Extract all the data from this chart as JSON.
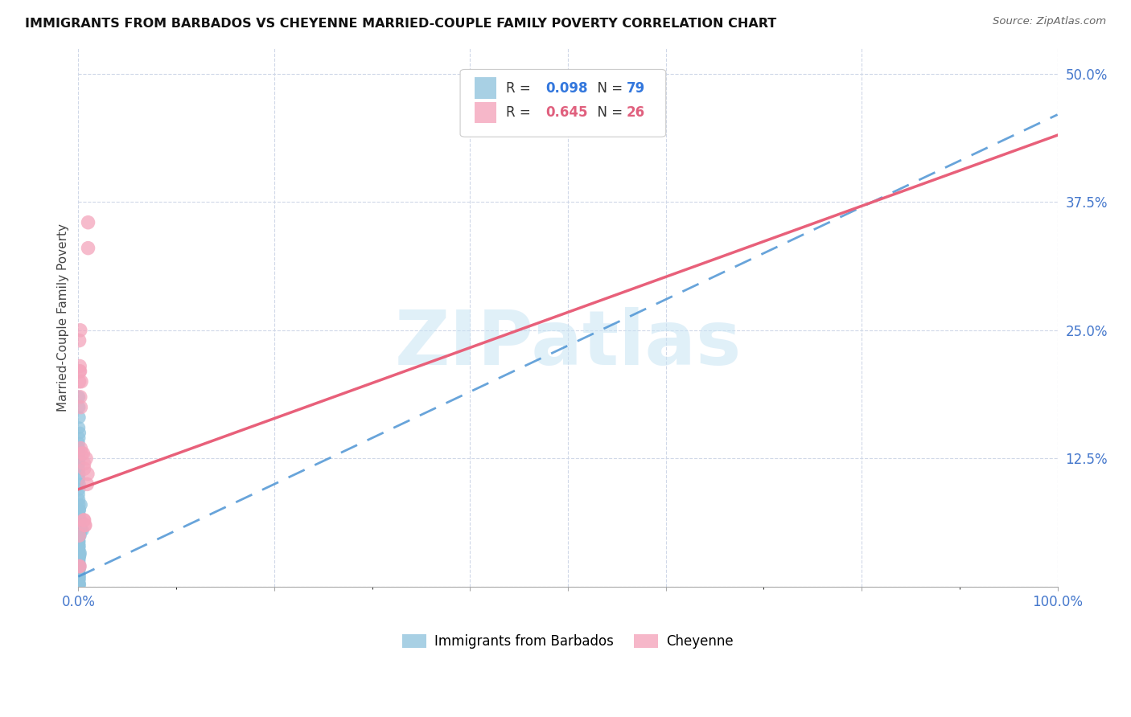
{
  "title": "IMMIGRANTS FROM BARBADOS VS CHEYENNE MARRIED-COUPLE FAMILY POVERTY CORRELATION CHART",
  "source": "Source: ZipAtlas.com",
  "ylabel": "Married-Couple Family Poverty",
  "series1_label": "Immigrants from Barbados",
  "series2_label": "Cheyenne",
  "series1_R": 0.098,
  "series1_N": 79,
  "series2_R": 0.645,
  "series2_N": 26,
  "series1_color": "#92c5de",
  "series2_color": "#f4a5bc",
  "trendline1_color": "#4d94d4",
  "trendline2_color": "#e8607a",
  "trendline1_style": "dashed",
  "trendline2_style": "solid",
  "watermark": "ZIPatlas",
  "watermark_color": "#c8e4f4",
  "xlim": [
    0.0,
    1.0
  ],
  "ylim": [
    0.0,
    0.525
  ],
  "x_tick_positions": [
    0.0,
    0.2,
    0.4,
    0.5,
    0.6,
    0.8,
    1.0
  ],
  "x_tick_labels_show": {
    "0.0": "0.0%",
    "1.0": "100.0%"
  },
  "y_ticks": [
    0.0,
    0.125,
    0.25,
    0.375,
    0.5
  ],
  "y_tick_labels": [
    "",
    "12.5%",
    "25.0%",
    "37.5%",
    "50.0%"
  ],
  "trendline1_x0": 0.0,
  "trendline1_y0": 0.01,
  "trendline1_x1": 1.0,
  "trendline1_y1": 0.46,
  "trendline2_x0": 0.0,
  "trendline2_y0": 0.095,
  "trendline2_x1": 1.0,
  "trendline2_y1": 0.44,
  "series1_x": [
    0.0008,
    0.001,
    0.0012,
    0.0008,
    0.0015,
    0.001,
    0.0005,
    0.0008,
    0.001,
    0.0012,
    0.0008,
    0.0005,
    0.001,
    0.0008,
    0.0012,
    0.001,
    0.0005,
    0.0008,
    0.001,
    0.0015,
    0.0008,
    0.001,
    0.0005,
    0.0008,
    0.001,
    0.0012,
    0.0008,
    0.0005,
    0.001,
    0.0008,
    0.0012,
    0.001,
    0.0005,
    0.0008,
    0.001,
    0.0015,
    0.0008,
    0.001,
    0.0005,
    0.0008,
    0.001,
    0.0012,
    0.0008,
    0.0005,
    0.001,
    0.0008,
    0.0012,
    0.001,
    0.0005,
    0.0008,
    0.001,
    0.0015,
    0.0008,
    0.001,
    0.0005,
    0.0008,
    0.001,
    0.0012,
    0.0008,
    0.0005,
    0.001,
    0.0008,
    0.0012,
    0.001,
    0.0005,
    0.0008,
    0.001,
    0.0018,
    0.0022,
    0.001,
    0.0008,
    0.003,
    0.002,
    0.0015,
    0.0025,
    0.001,
    0.0012,
    0.003,
    0.0045
  ],
  "series1_y": [
    0.185,
    0.175,
    0.165,
    0.155,
    0.15,
    0.145,
    0.14,
    0.135,
    0.13,
    0.125,
    0.12,
    0.115,
    0.11,
    0.105,
    0.1,
    0.095,
    0.09,
    0.085,
    0.08,
    0.075,
    0.07,
    0.065,
    0.06,
    0.055,
    0.052,
    0.05,
    0.048,
    0.046,
    0.044,
    0.042,
    0.04,
    0.038,
    0.036,
    0.034,
    0.032,
    0.03,
    0.028,
    0.026,
    0.024,
    0.022,
    0.02,
    0.018,
    0.016,
    0.014,
    0.012,
    0.01,
    0.008,
    0.006,
    0.005,
    0.004,
    0.003,
    0.002,
    0.001,
    0.003,
    0.005,
    0.007,
    0.009,
    0.011,
    0.013,
    0.015,
    0.017,
    0.019,
    0.021,
    0.023,
    0.025,
    0.027,
    0.029,
    0.031,
    0.033,
    0.035,
    0.045,
    0.055,
    0.05,
    0.06,
    0.065,
    0.07,
    0.075,
    0.08,
    0.055
  ],
  "series2_x": [
    0.0005,
    0.0008,
    0.001,
    0.0012,
    0.0015,
    0.0018,
    0.002,
    0.0025,
    0.0025,
    0.003,
    0.0035,
    0.005,
    0.0055,
    0.006,
    0.006,
    0.006,
    0.0065,
    0.007,
    0.008,
    0.009,
    0.0095,
    0.01,
    0.01,
    0.001,
    0.002,
    0.0015
  ],
  "series2_y": [
    0.02,
    0.05,
    0.2,
    0.21,
    0.215,
    0.21,
    0.185,
    0.175,
    0.135,
    0.2,
    0.13,
    0.13,
    0.065,
    0.12,
    0.065,
    0.115,
    0.06,
    0.06,
    0.125,
    0.1,
    0.11,
    0.355,
    0.33,
    0.24,
    0.25,
    0.02
  ]
}
